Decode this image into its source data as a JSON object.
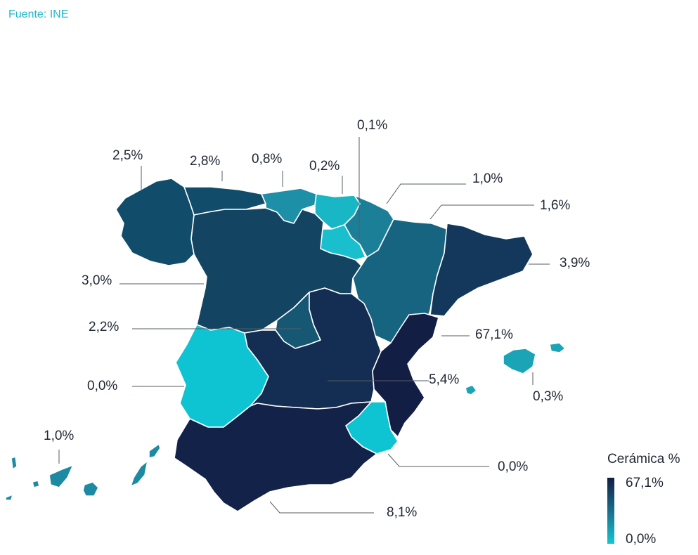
{
  "source": "Fuente: INE",
  "legend": {
    "title": "Cerámica %",
    "max_label": "67,1%",
    "min_label": "0,0%",
    "color_high": "#121e44",
    "color_low": "#14c6d1"
  },
  "map_data": {
    "type": "choropleth",
    "regions": [
      {
        "name": "Galicia",
        "value": 2.5,
        "label": "2,5%",
        "color": "#114d6b"
      },
      {
        "name": "Asturias",
        "value": 2.8,
        "label": "2,8%",
        "color": "#114d6b"
      },
      {
        "name": "Cantabria",
        "value": 0.8,
        "label": "0,8%",
        "color": "#1d8fa6"
      },
      {
        "name": "País Vasco",
        "value": 0.2,
        "label": "0,2%",
        "color": "#19b7c6"
      },
      {
        "name": "La Rioja",
        "value": 0.1,
        "label": "0,1%",
        "color": "#19bfcc"
      },
      {
        "name": "Navarra",
        "value": 1.0,
        "label": "1,0%",
        "color": "#1b7f98"
      },
      {
        "name": "Aragón",
        "value": 1.6,
        "label": "1,6%",
        "color": "#16647f"
      },
      {
        "name": "Cataluña",
        "value": 3.9,
        "label": "3,9%",
        "color": "#13385c"
      },
      {
        "name": "Castilla y León",
        "value": 3.0,
        "label": "3,0%",
        "color": "#134461"
      },
      {
        "name": "Madrid",
        "value": 2.2,
        "label": "2,2%",
        "color": "#165773"
      },
      {
        "name": "Comunidad Valenciana",
        "value": 67.1,
        "label": "67,1%",
        "color": "#121e44"
      },
      {
        "name": "Extremadura",
        "value": 0.0,
        "label": "0,0%",
        "color": "#0fc4d2"
      },
      {
        "name": "Castilla-La Mancha",
        "value": 5.4,
        "label": "5,4%",
        "color": "#142d52"
      },
      {
        "name": "Islas Baleares",
        "value": 0.3,
        "label": "0,3%",
        "color": "#1ba3b6"
      },
      {
        "name": "Islas Canarias",
        "value": 1.0,
        "label": "1,0%",
        "color": "#1b8aa2"
      },
      {
        "name": "Región de Murcia",
        "value": 0.0,
        "label": "0,0%",
        "color": "#0fc4d2"
      },
      {
        "name": "Andalucía",
        "value": 8.1,
        "label": "8,1%",
        "color": "#122249"
      }
    ]
  }
}
